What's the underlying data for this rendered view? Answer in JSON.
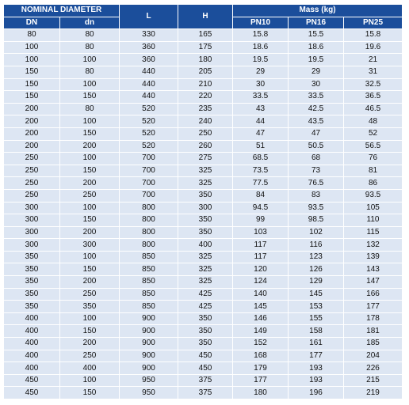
{
  "header": {
    "nominal_diameter": "NOMINAL DIAMETER",
    "dn_upper": "DN",
    "dn_lower": "dn",
    "l": "L",
    "h": "H",
    "mass": "Mass (kg)",
    "pn10": "PN10",
    "pn16": "PN16",
    "pn25": "PN25"
  },
  "table": {
    "rows": [
      [
        80,
        80,
        330,
        165,
        15.8,
        15.5,
        15.8
      ],
      [
        100,
        80,
        360,
        175,
        18.6,
        18.6,
        19.6
      ],
      [
        100,
        100,
        360,
        180,
        19.5,
        19.5,
        21
      ],
      [
        150,
        80,
        440,
        205,
        29,
        29,
        31
      ],
      [
        150,
        100,
        440,
        210,
        30,
        30,
        32.5
      ],
      [
        150,
        150,
        440,
        220,
        33.5,
        33.5,
        36.5
      ],
      [
        200,
        80,
        520,
        235,
        43,
        42.5,
        46.5
      ],
      [
        200,
        100,
        520,
        240,
        44,
        43.5,
        48
      ],
      [
        200,
        150,
        520,
        250,
        47,
        47,
        52
      ],
      [
        200,
        200,
        520,
        260,
        51,
        50.5,
        56.5
      ],
      [
        250,
        100,
        700,
        275,
        68.5,
        68,
        76
      ],
      [
        250,
        150,
        700,
        325,
        73.5,
        73,
        81
      ],
      [
        250,
        200,
        700,
        325,
        77.5,
        76.5,
        86
      ],
      [
        250,
        250,
        700,
        350,
        84,
        83,
        93.5
      ],
      [
        300,
        100,
        800,
        300,
        94.5,
        93.5,
        105
      ],
      [
        300,
        150,
        800,
        350,
        99,
        98.5,
        110
      ],
      [
        300,
        200,
        800,
        350,
        103,
        102,
        115
      ],
      [
        300,
        300,
        800,
        400,
        117,
        116,
        132
      ],
      [
        350,
        100,
        850,
        325,
        117,
        123,
        139
      ],
      [
        350,
        150,
        850,
        325,
        120,
        126,
        143
      ],
      [
        350,
        200,
        850,
        325,
        124,
        129,
        147
      ],
      [
        350,
        250,
        850,
        425,
        140,
        145,
        166
      ],
      [
        350,
        350,
        850,
        425,
        145,
        153,
        177
      ],
      [
        400,
        100,
        900,
        350,
        146,
        155,
        178
      ],
      [
        400,
        150,
        900,
        350,
        149,
        158,
        181
      ],
      [
        400,
        200,
        900,
        350,
        152,
        161,
        185
      ],
      [
        400,
        250,
        900,
        450,
        168,
        177,
        204
      ],
      [
        400,
        400,
        900,
        450,
        179,
        193,
        226
      ],
      [
        450,
        100,
        950,
        375,
        177,
        193,
        215
      ],
      [
        450,
        150,
        950,
        375,
        180,
        196,
        219
      ]
    ]
  }
}
